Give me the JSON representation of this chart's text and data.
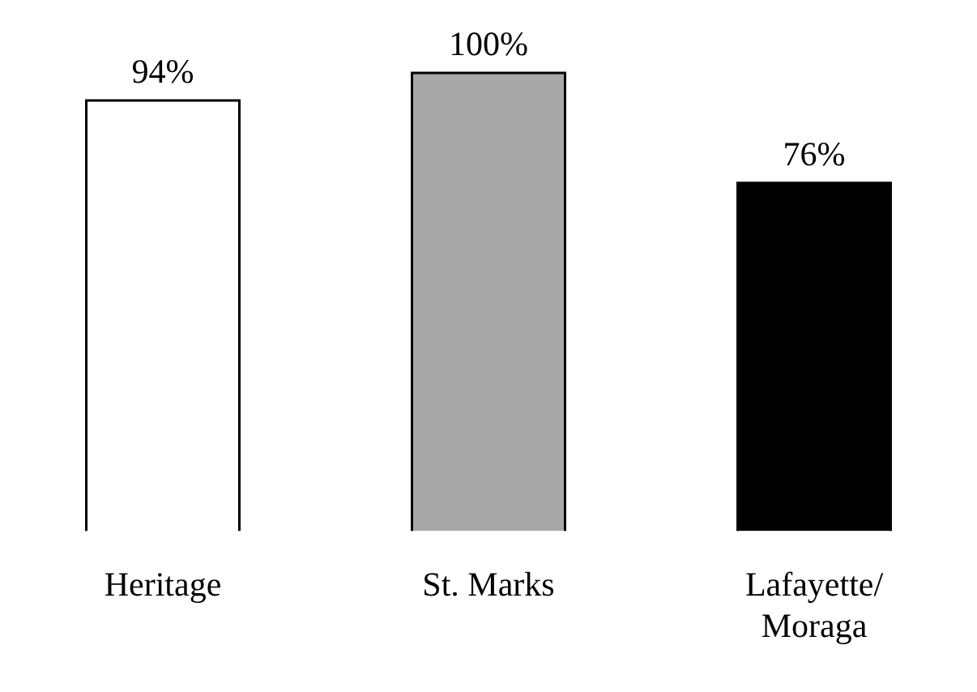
{
  "chart_data": {
    "type": "bar",
    "categories": [
      "Heritage",
      "St. Marks",
      "Lafayette/\nMoraga"
    ],
    "values": [
      94,
      100,
      76
    ],
    "colors": [
      "#ffffff",
      "#a8a8a8",
      "#000000"
    ],
    "value_labels": [
      "94%",
      "100%",
      "76%"
    ],
    "grid": false,
    "legend": false
  }
}
